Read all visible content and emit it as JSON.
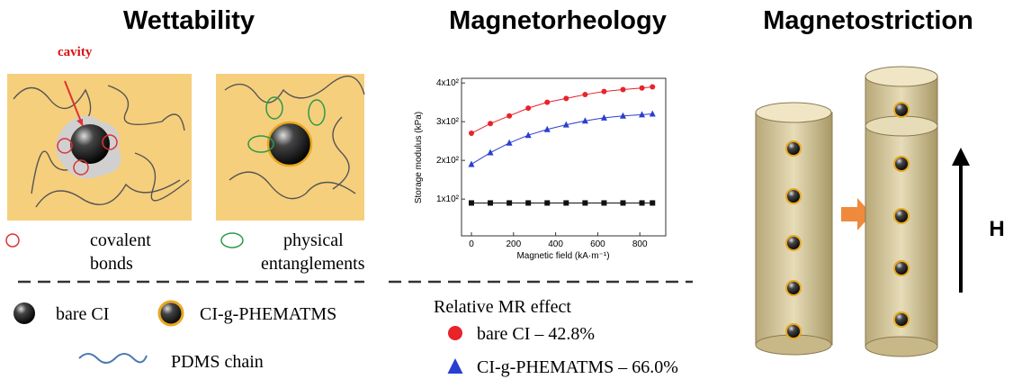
{
  "panels": [
    {
      "title": "Wettability"
    },
    {
      "title": "Magnetorheology"
    },
    {
      "title": "Magnetostriction"
    }
  ],
  "wettability": {
    "cavity_label": "cavity",
    "covalent_bonds": [
      "covalent",
      "bonds"
    ],
    "physical_entanglements": [
      "physical",
      "entanglements"
    ],
    "legend": [
      "bare CI",
      "CI-g-PHEMATMS",
      "PDMS chain"
    ]
  },
  "magnetorheology": {
    "legend_title": "Relative MR effect"
  },
  "magnetostriction": {
    "field_label": "H"
  },
  "chart_data": {
    "type": "line",
    "x_label": "Magnetic field (kA·m⁻¹)",
    "y_label": "Storage modulus (kPa)",
    "x": [
      0,
      90,
      180,
      270,
      360,
      450,
      540,
      630,
      720,
      810,
      860
    ],
    "series": [
      {
        "name": "bare CI – 42.8%",
        "color": "#e8232a",
        "marker": "circle",
        "values": [
          270,
          295,
          315,
          335,
          350,
          360,
          370,
          378,
          383,
          387,
          390
        ]
      },
      {
        "name": "CI-g-PHEMATMS – 66.0%",
        "color": "#2a3fd0",
        "marker": "triangle",
        "values": [
          190,
          220,
          245,
          265,
          280,
          292,
          302,
          310,
          315,
          318,
          320
        ]
      },
      {
        "color": "#111111",
        "marker": "square",
        "values": [
          90,
          90,
          90,
          90,
          90,
          90,
          90,
          90,
          90,
          90,
          90
        ]
      }
    ],
    "xlim": [
      -47,
      923
    ],
    "ylim": [
      5,
      412
    ],
    "xticks": [
      0,
      200,
      400,
      600,
      800
    ],
    "yticks": [
      {
        "value": 100,
        "label": "1x10²"
      },
      {
        "value": 200,
        "label": "2x10²"
      },
      {
        "value": 300,
        "label": "3x10²"
      },
      {
        "value": 400,
        "label": "4x10²"
      }
    ]
  }
}
